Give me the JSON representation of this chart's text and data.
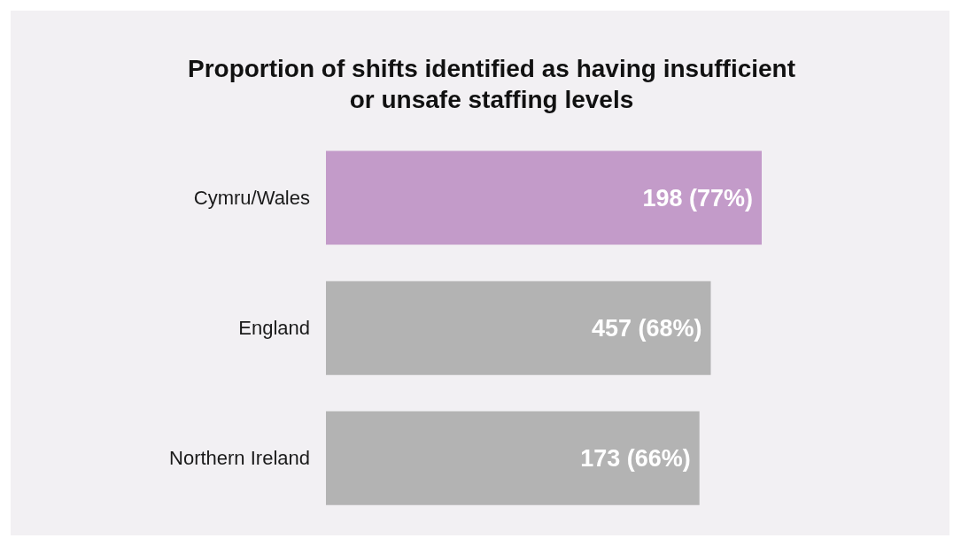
{
  "chart_data": {
    "type": "bar",
    "orientation": "horizontal",
    "title": "Proportion of shifts identified as having insufficient or unsafe staffing levels",
    "categories": [
      "Cymru/Wales",
      "England",
      "Northern Ireland"
    ],
    "values": [
      77,
      68,
      66
    ],
    "value_labels": [
      "198 (77%)",
      "457 (68%)",
      "173 (66%)"
    ],
    "colors": [
      "#c39bc9",
      "#b3b3b3",
      "#b3b3b3"
    ]
  }
}
